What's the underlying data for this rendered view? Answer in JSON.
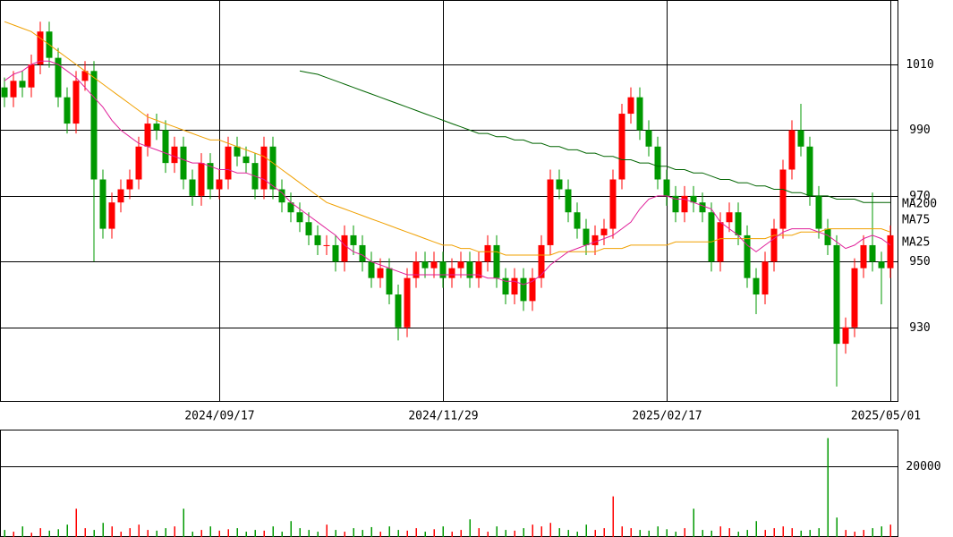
{
  "chart_data": {
    "type": "candlestick",
    "categories": [
      null,
      null,
      null,
      null,
      null,
      null,
      null,
      null,
      null,
      null,
      null,
      null,
      null,
      null,
      null,
      null,
      null,
      null,
      null,
      null,
      null,
      null,
      null,
      null,
      "2024/09/17",
      null,
      null,
      null,
      null,
      null,
      null,
      null,
      null,
      null,
      null,
      null,
      null,
      null,
      null,
      null,
      null,
      null,
      null,
      null,
      null,
      null,
      null,
      null,
      null,
      "2024/11/29",
      null,
      null,
      null,
      null,
      null,
      null,
      null,
      null,
      null,
      null,
      null,
      null,
      null,
      null,
      null,
      null,
      null,
      null,
      null,
      null,
      null,
      null,
      null,
      null,
      "2025/02/17",
      null,
      null,
      null,
      null,
      null,
      null,
      null,
      null,
      null,
      null,
      null,
      null,
      null,
      null,
      null,
      null,
      null,
      null,
      null,
      null,
      null,
      null,
      null,
      null,
      "2025/05/01"
    ],
    "open": [
      1003,
      1000,
      1005,
      1003,
      1010,
      1020,
      1012,
      1000,
      992,
      1005,
      1008,
      975,
      960,
      968,
      972,
      975,
      985,
      992,
      990,
      980,
      985,
      975,
      970,
      980,
      972,
      975,
      985,
      982,
      980,
      972,
      985,
      972,
      968,
      965,
      962,
      958,
      955,
      955,
      950,
      958,
      955,
      950,
      945,
      948,
      940,
      930,
      945,
      950,
      948,
      950,
      945,
      948,
      950,
      945,
      950,
      955,
      945,
      940,
      945,
      938,
      945,
      955,
      975,
      972,
      965,
      960,
      955,
      958,
      960,
      975,
      995,
      1000,
      990,
      985,
      975,
      970,
      965,
      970,
      968,
      965,
      950,
      962,
      965,
      958,
      945,
      940,
      950,
      960,
      978,
      990,
      985,
      970,
      960,
      955,
      925,
      930,
      948,
      955,
      950,
      948
    ],
    "high": [
      1006,
      1008,
      1008,
      1013,
      1023,
      1023,
      1015,
      1003,
      1008,
      1011,
      1011,
      978,
      971,
      975,
      978,
      988,
      995,
      995,
      993,
      988,
      988,
      978,
      983,
      983,
      978,
      988,
      988,
      985,
      983,
      988,
      988,
      975,
      971,
      968,
      965,
      961,
      958,
      958,
      961,
      961,
      958,
      953,
      951,
      951,
      943,
      948,
      953,
      953,
      953,
      953,
      951,
      953,
      953,
      953,
      958,
      958,
      948,
      948,
      948,
      948,
      958,
      978,
      978,
      975,
      968,
      963,
      961,
      963,
      978,
      998,
      1003,
      1003,
      993,
      988,
      978,
      973,
      973,
      973,
      971,
      968,
      965,
      968,
      968,
      961,
      948,
      953,
      963,
      981,
      993,
      998,
      988,
      973,
      963,
      958,
      933,
      951,
      958,
      971,
      953,
      961
    ],
    "low": [
      997,
      997,
      1000,
      1000,
      1007,
      1009,
      997,
      989,
      989,
      1002,
      950,
      957,
      957,
      965,
      969,
      972,
      982,
      987,
      977,
      977,
      972,
      967,
      967,
      969,
      969,
      972,
      979,
      977,
      969,
      969,
      969,
      965,
      962,
      959,
      955,
      952,
      952,
      947,
      947,
      952,
      947,
      942,
      942,
      937,
      926,
      927,
      942,
      945,
      945,
      942,
      942,
      945,
      942,
      942,
      947,
      942,
      937,
      937,
      935,
      935,
      942,
      952,
      969,
      962,
      957,
      952,
      952,
      955,
      957,
      972,
      992,
      987,
      982,
      972,
      967,
      962,
      962,
      965,
      962,
      947,
      947,
      959,
      955,
      942,
      934,
      937,
      947,
      957,
      975,
      982,
      967,
      957,
      952,
      912,
      922,
      927,
      945,
      947,
      937,
      945
    ],
    "close": [
      1000,
      1005,
      1003,
      1010,
      1020,
      1012,
      1000,
      992,
      1005,
      1008,
      975,
      960,
      968,
      972,
      975,
      985,
      992,
      990,
      980,
      985,
      975,
      970,
      980,
      972,
      975,
      985,
      982,
      980,
      972,
      985,
      972,
      968,
      965,
      962,
      958,
      955,
      955,
      950,
      958,
      955,
      950,
      945,
      948,
      940,
      930,
      945,
      950,
      948,
      950,
      945,
      948,
      950,
      945,
      950,
      955,
      945,
      940,
      945,
      938,
      945,
      955,
      975,
      972,
      965,
      960,
      955,
      958,
      960,
      975,
      995,
      1000,
      990,
      985,
      975,
      970,
      965,
      970,
      968,
      965,
      950,
      962,
      965,
      958,
      945,
      940,
      950,
      960,
      978,
      990,
      985,
      970,
      960,
      955,
      925,
      930,
      948,
      955,
      950,
      948,
      958
    ],
    "up_color": "#ff0000",
    "down_color": "#009900",
    "ylim": [
      907.6,
      1029.6
    ],
    "yticks": [
      1010,
      990,
      970,
      950,
      930
    ],
    "series": [
      {
        "name": "MA200",
        "color": "#006400",
        "values": [
          null,
          null,
          null,
          null,
          null,
          null,
          null,
          null,
          null,
          null,
          null,
          null,
          null,
          null,
          null,
          null,
          null,
          null,
          null,
          null,
          null,
          null,
          null,
          null,
          null,
          null,
          null,
          null,
          null,
          null,
          null,
          null,
          null,
          1008,
          1007.5,
          1007,
          1006,
          1005,
          1004,
          1003,
          1002,
          1001,
          1000,
          999,
          998,
          997,
          996,
          995,
          994,
          993,
          992,
          991,
          990,
          989,
          989,
          988,
          988,
          987,
          987,
          986,
          986,
          985,
          985,
          984,
          984,
          983,
          983,
          982,
          982,
          981,
          981,
          980,
          980,
          979,
          979,
          978,
          978,
          977,
          977,
          976,
          975,
          975,
          974,
          974,
          973,
          973,
          972,
          972,
          971,
          971,
          970,
          970,
          970,
          969,
          969,
          969,
          968,
          968,
          968,
          968
        ]
      },
      {
        "name": "MA75",
        "color": "#f0a000",
        "values": [
          1023,
          1022,
          1021,
          1020,
          1018,
          1016,
          1014,
          1012,
          1010,
          1008,
          1006,
          1004,
          1002,
          1000,
          998,
          996,
          994,
          993,
          992,
          991,
          990,
          989,
          988,
          987,
          987,
          986,
          985,
          984,
          983,
          982,
          980,
          978,
          976,
          974,
          972,
          970,
          968,
          967,
          966,
          965,
          964,
          963,
          962,
          961,
          960,
          959,
          958,
          957,
          956,
          955,
          955,
          954,
          954,
          953,
          953,
          953,
          952,
          952,
          952,
          952,
          952,
          952,
          953,
          953,
          953,
          953,
          953,
          954,
          954,
          954,
          955,
          955,
          955,
          955,
          955,
          956,
          956,
          956,
          956,
          956,
          957,
          957,
          957,
          957,
          957,
          957,
          958,
          958,
          958,
          959,
          959,
          959,
          960,
          960,
          960,
          960,
          960,
          960,
          960,
          959
        ]
      },
      {
        "name": "MA25",
        "color": "#e0209a",
        "values": [
          1005,
          1007,
          1008,
          1010,
          1011,
          1011,
          1010,
          1008,
          1006,
          1003,
          1000,
          997,
          993,
          990,
          988,
          986,
          985,
          984,
          983,
          982,
          981,
          980,
          980,
          979,
          978,
          978,
          977,
          977,
          976,
          975,
          973,
          971,
          968,
          966,
          964,
          962,
          960,
          958,
          955,
          953,
          952,
          950,
          949,
          948,
          947,
          946,
          946,
          946,
          946,
          946,
          946,
          946,
          946,
          946,
          945,
          945,
          944,
          944,
          943,
          944,
          946,
          949,
          951,
          953,
          954,
          955,
          956,
          957,
          958,
          960,
          962,
          966,
          969,
          970,
          970,
          969,
          969,
          968,
          967,
          966,
          962,
          960,
          958,
          955,
          953,
          955,
          957,
          959,
          960,
          960,
          960,
          959,
          958,
          956,
          954,
          955,
          957,
          958,
          957,
          955
        ]
      }
    ],
    "volume": {
      "values": [
        2000,
        1500,
        3000,
        1200,
        2500,
        1800,
        2200,
        3500,
        8000,
        2500,
        2000,
        4000,
        3000,
        1500,
        2500,
        3500,
        2000,
        1800,
        2500,
        3000,
        8000,
        1500,
        2000,
        3000,
        1800,
        2200,
        2500,
        1500,
        2000,
        1800,
        3000,
        1500,
        4500,
        2500,
        2000,
        1500,
        3500,
        2000,
        1500,
        2500,
        2000,
        2800,
        1500,
        3000,
        2000,
        1800,
        2500,
        1500,
        2200,
        3000,
        1500,
        2000,
        5000,
        2500,
        1500,
        3000,
        2000,
        1800,
        2500,
        3500,
        3000,
        4000,
        2500,
        2000,
        1500,
        3500,
        2000,
        2500,
        11500,
        3000,
        2500,
        2000,
        1800,
        3000,
        2200,
        1500,
        2500,
        8000,
        2000,
        1800,
        3000,
        2500,
        1500,
        2000,
        4500,
        2000,
        2500,
        3000,
        2500,
        1800,
        2000,
        2500,
        28000,
        5500,
        2000,
        1500,
        2000,
        2500,
        3000,
        3500
      ],
      "ylim": [
        0,
        30400
      ],
      "yticks": [
        20000
      ]
    }
  }
}
